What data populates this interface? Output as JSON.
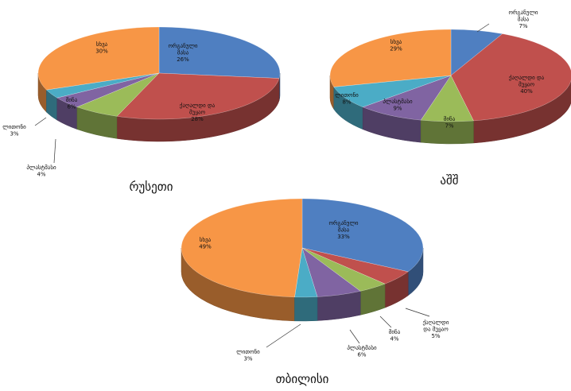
{
  "chart_data": [
    {
      "type": "pie",
      "title": "რუსეთი",
      "categories": [
        "ორგანული მასა",
        "ქაღალდი და მუყაო",
        "მინა",
        "პლასტმასი",
        "ლითონი",
        "სხვა"
      ],
      "values": [
        26,
        28,
        6,
        4,
        3,
        30
      ],
      "labels": [
        "ორგანული\nმასა\n26%",
        "ქაღალდი და\nმუყაო\n28%",
        "მინა\n6%",
        "პლასტმასი\n4%",
        "ლითონი\n3%",
        "სხვა\n30%"
      ],
      "colors": [
        "#4f7fc1",
        "#c0504d",
        "#9bbb59",
        "#8064a2",
        "#4bacc6",
        "#f79646"
      ]
    },
    {
      "type": "pie",
      "title": "აშშ",
      "categories": [
        "ორგანული მასა",
        "ქაღალდი და მუყაო",
        "მინა",
        "პლასტმასი",
        "ლითონი",
        "სხვა"
      ],
      "values": [
        7,
        40,
        7,
        9,
        8,
        29
      ],
      "labels": [
        "ორგანული\nმასა\n7%",
        "ქაღალდი და\nმუყაო\n40%",
        "მინა\n7%",
        "პლასტმასი\n9%",
        "ლითონი\n8%",
        "სხვა\n29%"
      ],
      "colors": [
        "#4f7fc1",
        "#c0504d",
        "#9bbb59",
        "#8064a2",
        "#4bacc6",
        "#f79646"
      ]
    },
    {
      "type": "pie",
      "title": "თბილისი",
      "categories": [
        "ორგანული მასა",
        "ქაღალდი და მუყაო",
        "მინა",
        "პლასტმასი",
        "ლითონი",
        "სხვა"
      ],
      "values": [
        33,
        5,
        4,
        6,
        3,
        49
      ],
      "labels": [
        "ორგანული\nმასა\n33%",
        "ქაღალდი\nდა მუყაო\n5%",
        "მინა\n4%",
        "პლასტმასი\n6%",
        "ლითონი\n3%",
        "სხვა\n49%"
      ],
      "colors": [
        "#4f7fc1",
        "#c0504d",
        "#9bbb59",
        "#8064a2",
        "#4bacc6",
        "#f79646"
      ]
    }
  ]
}
